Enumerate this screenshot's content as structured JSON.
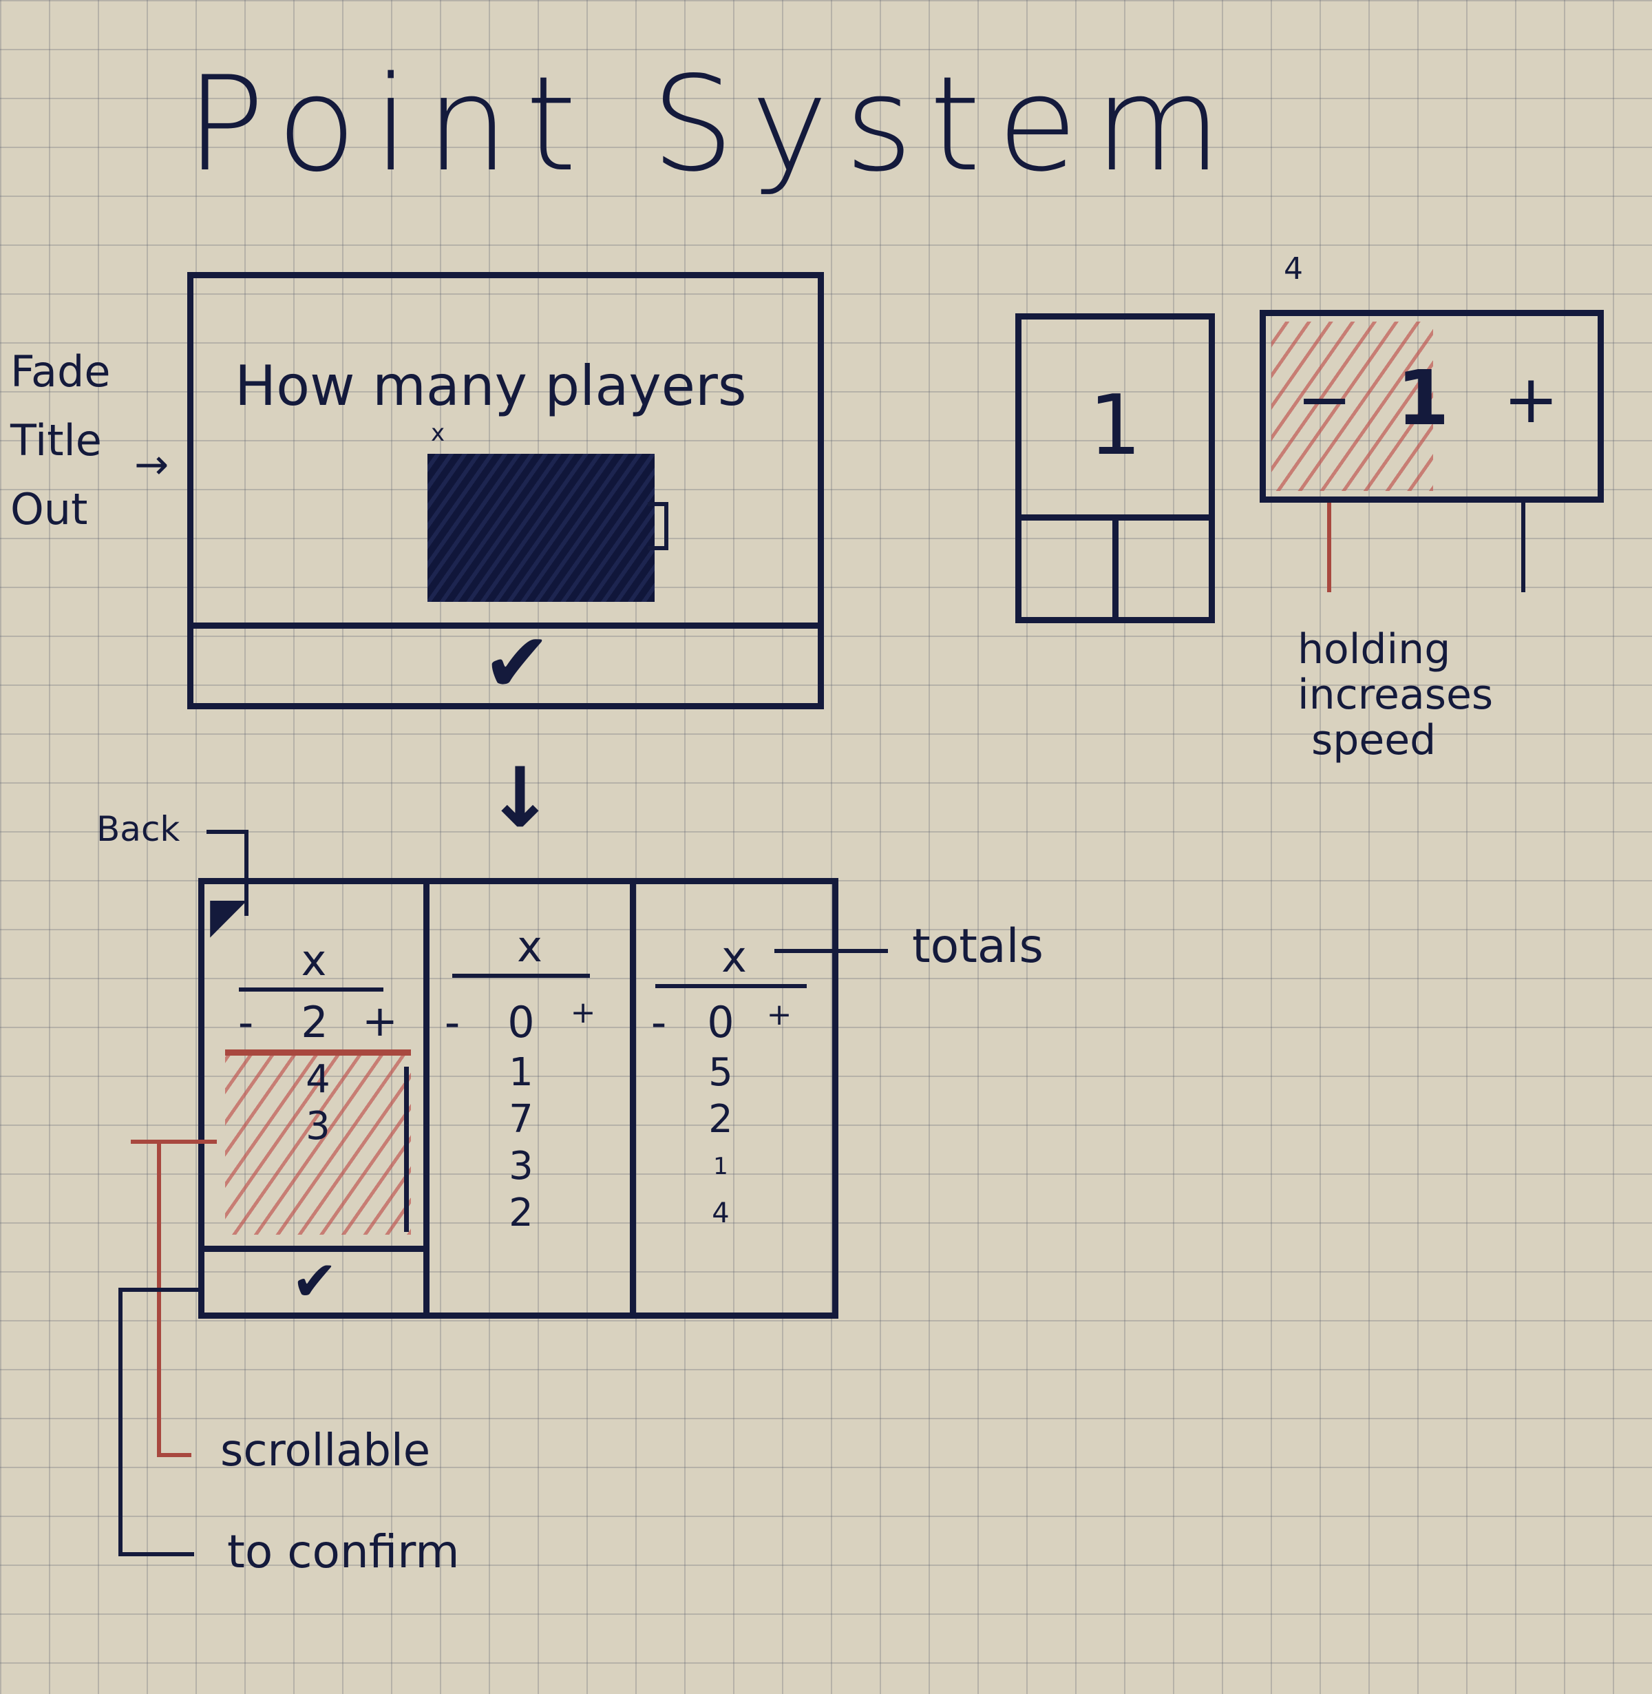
{
  "title": "Point System",
  "side_note": {
    "lines": [
      "Fade",
      "Title",
      "Out"
    ]
  },
  "screen1": {
    "prompt": "How many players",
    "input_close": "x",
    "confirm_icon": "checkmark-icon"
  },
  "stepper_small_label": "4",
  "tile": {
    "value": "1"
  },
  "stepper": {
    "minus": "−",
    "value": "1",
    "plus": "+"
  },
  "stepper_note": [
    "holding",
    "increases",
    "speed"
  ],
  "back_label": "Back",
  "totals_label": "totals",
  "columns": [
    {
      "remove": "x",
      "minus": "-",
      "total": "2",
      "plus": "+",
      "entries": [
        "4",
        "3"
      ]
    },
    {
      "remove": "x",
      "minus": "-",
      "total": "0",
      "plus": "+",
      "entries": [
        "1",
        "7",
        "3",
        "2"
      ]
    },
    {
      "remove": "x",
      "minus": "-",
      "total": "0",
      "plus": "+",
      "entries": [
        "5",
        "2",
        "1",
        "4"
      ]
    }
  ],
  "notes": {
    "scrollable": "scrollable",
    "to_confirm": "to confirm"
  },
  "colors": {
    "ink": "#141a3c",
    "red": "#a8483f",
    "paper": "#d9d2bf"
  }
}
